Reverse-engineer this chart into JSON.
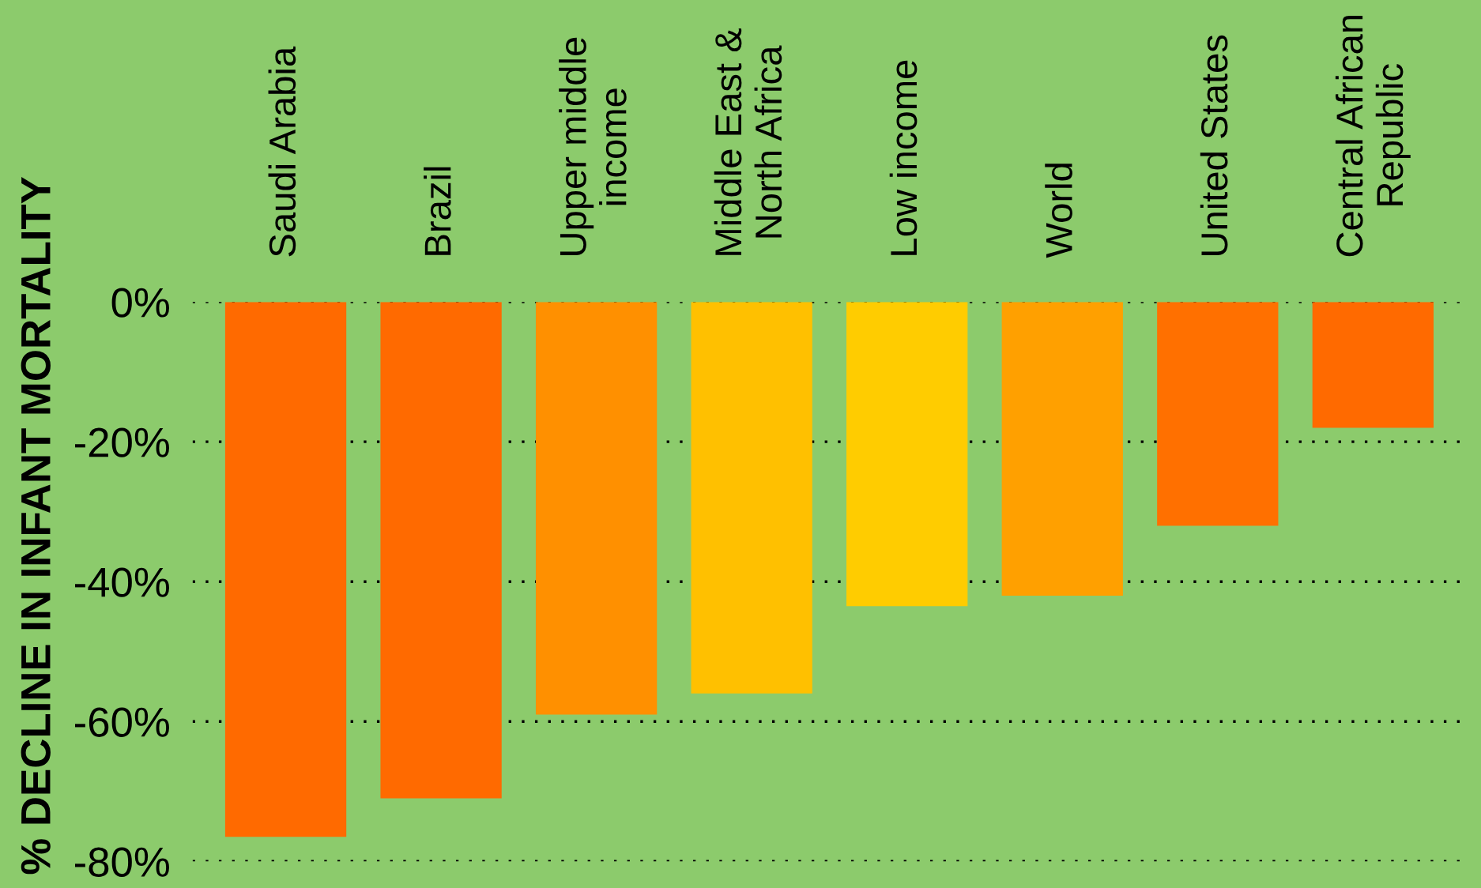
{
  "chart_data": {
    "type": "bar",
    "ylabel": "% DECLINE IN INFANT MORTALITY",
    "categories": [
      "Saudi Arabia",
      "Brazil",
      "Upper middle\nincome",
      "Middle East &\nNorth Africa",
      "Low income",
      "World",
      "United States",
      "Central African\nRepublic"
    ],
    "values": [
      -76.5,
      -71,
      -59,
      -56,
      -43.5,
      -42,
      -32,
      -18
    ],
    "colors": [
      "#ff6a00",
      "#ff6a00",
      "#ff9000",
      "#ffc000",
      "#ffcc00",
      "#ffa000",
      "#ff7000",
      "#ff6a00"
    ],
    "ylim": [
      -80,
      0
    ],
    "yticks": [
      {
        "value": 0,
        "label": "0%"
      },
      {
        "value": -20,
        "label": "-20%"
      },
      {
        "value": -40,
        "label": "-40%"
      },
      {
        "value": -60,
        "label": "-60%"
      },
      {
        "value": -80,
        "label": "-80%"
      }
    ],
    "grid": "y"
  }
}
